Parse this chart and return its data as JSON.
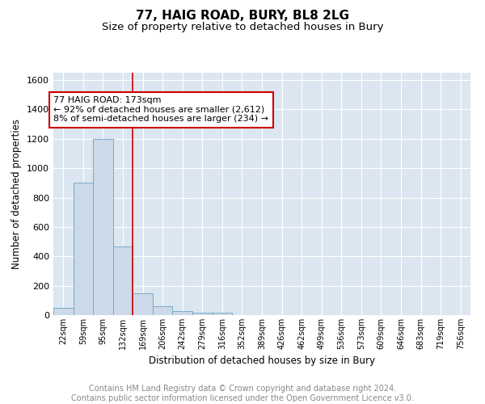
{
  "title": "77, HAIG ROAD, BURY, BL8 2LG",
  "subtitle": "Size of property relative to detached houses in Bury",
  "xlabel": "Distribution of detached houses by size in Bury",
  "ylabel": "Number of detached properties",
  "bin_labels": [
    "22sqm",
    "59sqm",
    "95sqm",
    "132sqm",
    "169sqm",
    "206sqm",
    "242sqm",
    "279sqm",
    "316sqm",
    "352sqm",
    "389sqm",
    "426sqm",
    "462sqm",
    "499sqm",
    "536sqm",
    "573sqm",
    "609sqm",
    "646sqm",
    "683sqm",
    "719sqm",
    "756sqm"
  ],
  "bar_heights": [
    50,
    900,
    1200,
    470,
    150,
    60,
    30,
    18,
    18,
    0,
    0,
    0,
    0,
    0,
    0,
    0,
    0,
    0,
    0,
    0,
    0
  ],
  "bar_color": "#ccd9e8",
  "bar_edge_color": "#7aaac8",
  "property_line_x": 4,
  "property_line_color": "#cc0000",
  "annotation_text": "77 HAIG ROAD: 173sqm\n← 92% of detached houses are smaller (2,612)\n8% of semi-detached houses are larger (234) →",
  "annotation_box_color": "#ffffff",
  "annotation_box_edge_color": "#cc0000",
  "ylim": [
    0,
    1650
  ],
  "yticks": [
    0,
    200,
    400,
    600,
    800,
    1000,
    1200,
    1400,
    1600
  ],
  "background_color": "#dce6f0",
  "footer_text": "Contains HM Land Registry data © Crown copyright and database right 2024.\nContains public sector information licensed under the Open Government Licence v3.0.",
  "title_fontsize": 11,
  "subtitle_fontsize": 9.5,
  "annotation_fontsize": 8,
  "footer_fontsize": 7,
  "ylabel_fontsize": 8.5,
  "xlabel_fontsize": 8.5,
  "ytick_fontsize": 8,
  "xtick_fontsize": 7
}
